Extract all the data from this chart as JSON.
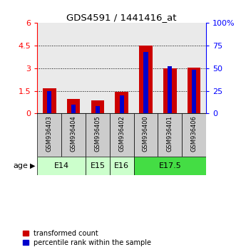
{
  "title": "GDS4591 / 1441416_at",
  "samples": [
    "GSM936403",
    "GSM936404",
    "GSM936405",
    "GSM936402",
    "GSM936400",
    "GSM936401",
    "GSM936406"
  ],
  "transformed_count": [
    1.65,
    0.95,
    0.85,
    1.45,
    4.5,
    3.0,
    3.05
  ],
  "percentile_rank": [
    25,
    10,
    8,
    20,
    68,
    52,
    48
  ],
  "age_groups": [
    {
      "label": "E14",
      "start": 0,
      "end": 2,
      "color": "#ccffcc"
    },
    {
      "label": "E15",
      "start": 2,
      "end": 3,
      "color": "#ccffcc"
    },
    {
      "label": "E16",
      "start": 3,
      "end": 4,
      "color": "#ccffcc"
    },
    {
      "label": "E17.5",
      "start": 4,
      "end": 7,
      "color": "#44dd44"
    }
  ],
  "ylim_left": [
    0,
    6
  ],
  "ylim_right": [
    0,
    100
  ],
  "yticks_left": [
    0,
    1.5,
    3.0,
    4.5,
    6.0
  ],
  "ytick_labels_left": [
    "0",
    "1.5",
    "3",
    "4.5",
    "6"
  ],
  "yticks_right": [
    0,
    25,
    50,
    75,
    100
  ],
  "ytick_labels_right": [
    "0",
    "25",
    "50",
    "75",
    "100%"
  ],
  "bar_color_red": "#cc0000",
  "bar_color_blue": "#0000cc",
  "red_bar_width": 0.55,
  "blue_bar_width": 0.18,
  "bg_color_sample": "#cccccc",
  "bg_color_age_light": "#ccffcc",
  "bg_color_age_dark": "#44dd44",
  "legend_red": "transformed count",
  "legend_blue": "percentile rank within the sample",
  "age_row_label": "age"
}
